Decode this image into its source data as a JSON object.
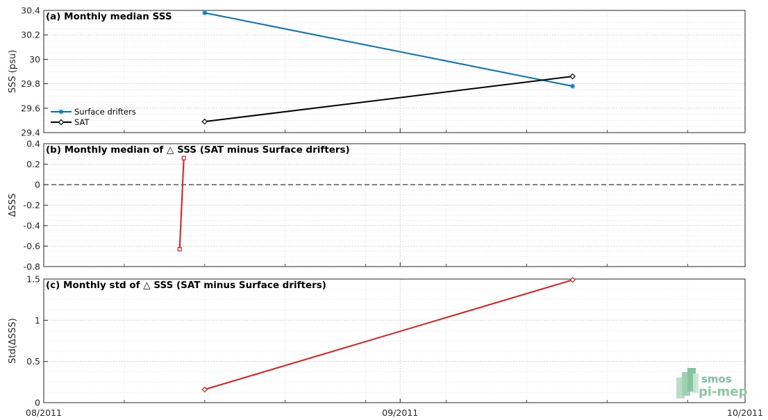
{
  "chart_data": [
    {
      "type": "line",
      "title": "(a) Monthly median SSS",
      "ylabel": "SSS (psu)",
      "ylim": [
        29.4,
        30.4
      ],
      "yticks": [
        "29.4",
        "29.6",
        "29.8",
        "30",
        "30.2",
        "30.4"
      ],
      "xlim": [
        "2011-08-01",
        "2011-10-01"
      ],
      "grid": true,
      "legend": "left",
      "series": [
        {
          "name": "Surface drifters",
          "color": "#0072bd",
          "marker": "star",
          "x": [
            "2011-08-15",
            "2011-09-16"
          ],
          "values": [
            30.38,
            29.78
          ]
        },
        {
          "name": "SAT",
          "color": "#000000",
          "marker": "diamond",
          "x": [
            "2011-08-15",
            "2011-09-16"
          ],
          "values": [
            29.49,
            29.86
          ]
        }
      ]
    },
    {
      "type": "line",
      "title": "(b) Monthly median of △ SSS (SAT minus Surface drifters)",
      "ylabel": "ΔSSS",
      "ylim": [
        -0.8,
        0.4
      ],
      "yticks": [
        "-0.8",
        "-0.6",
        "-0.4",
        "-0.2",
        "0",
        "0.2",
        "0.4"
      ],
      "xlim": [
        "2011-08-01",
        "2011-10-01"
      ],
      "grid": true,
      "zero_line": true,
      "series": [
        {
          "color": "#e41a1c",
          "marker": "square",
          "x": [
            "2011-08-13",
            "2011-08-13"
          ],
          "values": [
            -0.63,
            0.26
          ]
        }
      ]
    },
    {
      "type": "line",
      "title": "(c) Monthly std of △ SSS (SAT minus Surface drifters)",
      "ylabel": "Std(ΔSSS)",
      "ylim": [
        0,
        1.5
      ],
      "yticks": [
        "0",
        "0.5",
        "1",
        "1.5"
      ],
      "xlim": [
        "2011-08-01",
        "2011-10-01"
      ],
      "xticks": [
        "08/2011",
        "09/2011",
        "10/2011"
      ],
      "grid": true,
      "series": [
        {
          "color": "#e41a1c",
          "marker": "diamond",
          "x": [
            "2011-08-15",
            "2011-09-16"
          ],
          "values": [
            0.16,
            1.49
          ]
        }
      ]
    }
  ],
  "logo": {
    "line1": "smos",
    "line2": "pi-mep"
  }
}
